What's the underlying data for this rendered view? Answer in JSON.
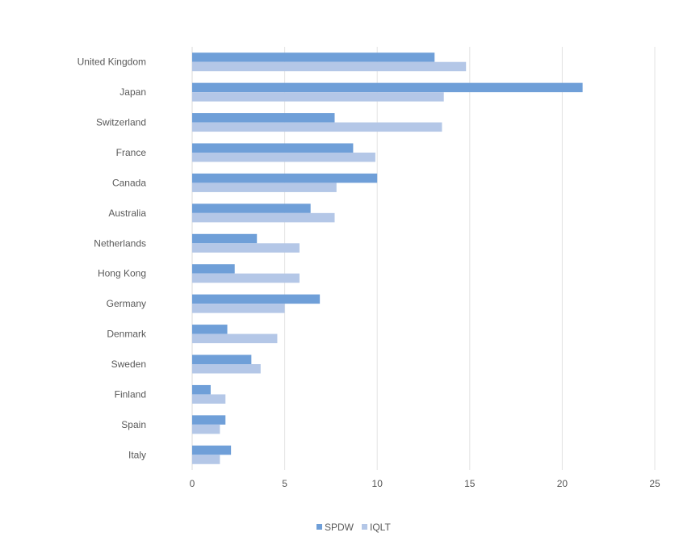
{
  "chart_data": {
    "type": "bar",
    "orientation": "horizontal",
    "categories": [
      "United Kingdom",
      "Japan",
      "Switzerland",
      "France",
      "Canada",
      "Australia",
      "Netherlands",
      "Hong Kong",
      "Germany",
      "Denmark",
      "Sweden",
      "Finland",
      "Spain",
      "Italy"
    ],
    "series": [
      {
        "name": "SPDW",
        "color": "#6f9fd8",
        "values": [
          13.1,
          21.1,
          7.7,
          8.7,
          10.0,
          6.4,
          3.5,
          2.3,
          6.9,
          1.9,
          3.2,
          1.0,
          1.8,
          2.1
        ]
      },
      {
        "name": "IQLT",
        "color": "#b4c7e7",
        "values": [
          14.8,
          13.6,
          13.5,
          9.9,
          7.8,
          7.7,
          5.8,
          5.8,
          5.0,
          4.6,
          3.7,
          1.8,
          1.5,
          1.5
        ]
      }
    ],
    "title": "",
    "xlabel": "",
    "ylabel": "",
    "xlim": [
      0,
      25
    ],
    "xticks": [
      "0",
      "5",
      "10",
      "15",
      "20",
      "25"
    ],
    "grid": "vertical",
    "legend": "bottom-center"
  }
}
